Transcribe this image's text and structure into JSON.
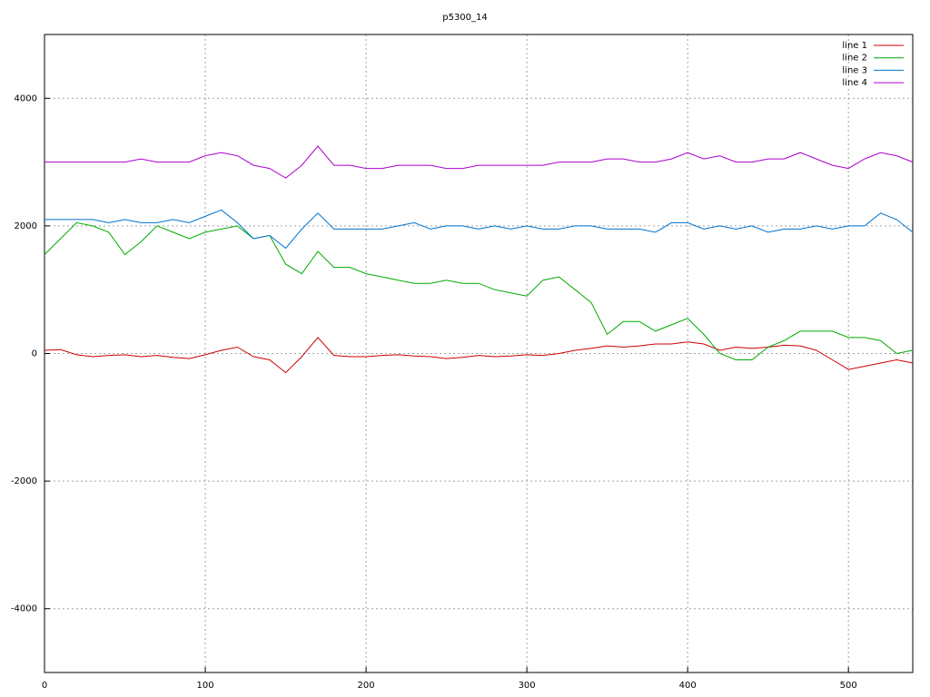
{
  "chart_data": {
    "type": "line",
    "title": "p5300_14",
    "x": [
      0,
      10,
      20,
      30,
      40,
      50,
      60,
      70,
      80,
      90,
      100,
      110,
      120,
      130,
      140,
      150,
      160,
      170,
      180,
      190,
      200,
      210,
      220,
      230,
      240,
      250,
      260,
      270,
      280,
      290,
      300,
      310,
      320,
      330,
      340,
      350,
      360,
      370,
      380,
      390,
      400,
      410,
      420,
      430,
      440,
      450,
      460,
      470,
      480,
      490,
      500,
      510,
      520,
      530,
      540
    ],
    "series": [
      {
        "name": "line 1",
        "color": "#cc0000",
        "values": [
          50,
          60,
          -20,
          -50,
          -30,
          -20,
          -50,
          -30,
          -60,
          -80,
          -20,
          50,
          100,
          -50,
          -100,
          -300,
          -50,
          250,
          -30,
          -50,
          -50,
          -30,
          -20,
          -40,
          -50,
          -80,
          -60,
          -30,
          -50,
          -40,
          -20,
          -30,
          0,
          50,
          80,
          120,
          100,
          120,
          150,
          150,
          180,
          150,
          50,
          100,
          80,
          100,
          130,
          120,
          50,
          -100,
          -250,
          -200,
          -150,
          -100,
          -150
        ]
      },
      {
        "name": "line 2",
        "color": "#00aa00",
        "values": [
          1550,
          1800,
          2050,
          2000,
          1900,
          1550,
          1750,
          2000,
          1900,
          1800,
          1900,
          1950,
          2000,
          1800,
          1850,
          1400,
          1250,
          1600,
          1350,
          1350,
          1250,
          1200,
          1150,
          1100,
          1100,
          1150,
          1100,
          1100,
          1000,
          950,
          900,
          1150,
          1200,
          1000,
          800,
          300,
          500,
          500,
          350,
          450,
          550,
          300,
          0,
          -100,
          -100,
          100,
          200,
          350,
          350,
          350,
          250,
          250,
          200,
          0,
          50
        ]
      },
      {
        "name": "line 3",
        "color": "#0072cc",
        "values": [
          2100,
          2100,
          2100,
          2100,
          2050,
          2100,
          2050,
          2050,
          2100,
          2050,
          2150,
          2250,
          2050,
          1800,
          1850,
          1650,
          1950,
          2200,
          1950,
          1950,
          1950,
          1950,
          2000,
          2050,
          1950,
          2000,
          2000,
          1950,
          2000,
          1950,
          2000,
          1950,
          1950,
          2000,
          2000,
          1950,
          1950,
          1950,
          1900,
          2050,
          2050,
          1950,
          2000,
          1950,
          2000,
          1900,
          1950,
          1950,
          2000,
          1950,
          2000,
          2000,
          2200,
          2100,
          1900
        ]
      },
      {
        "name": "line 4",
        "color": "#aa00cc",
        "values": [
          3000,
          3000,
          3000,
          3000,
          3000,
          3000,
          3050,
          3000,
          3000,
          3000,
          3100,
          3150,
          3100,
          2950,
          2900,
          2750,
          2950,
          3250,
          2950,
          2950,
          2900,
          2900,
          2950,
          2950,
          2950,
          2900,
          2900,
          2950,
          2950,
          2950,
          2950,
          2950,
          3000,
          3000,
          3000,
          3050,
          3050,
          3000,
          3000,
          3050,
          3150,
          3050,
          3100,
          3000,
          3000,
          3050,
          3050,
          3150,
          3050,
          2950,
          2900,
          3050,
          3150,
          3100,
          3000
        ]
      }
    ],
    "xlim": [
      0,
      540
    ],
    "xticks": [
      0,
      100,
      200,
      300,
      400,
      500
    ],
    "ylim": [
      -5000,
      5000
    ],
    "yticks": [
      -4000,
      -2000,
      0,
      2000,
      4000
    ],
    "grid": true,
    "legend": "top-right"
  }
}
